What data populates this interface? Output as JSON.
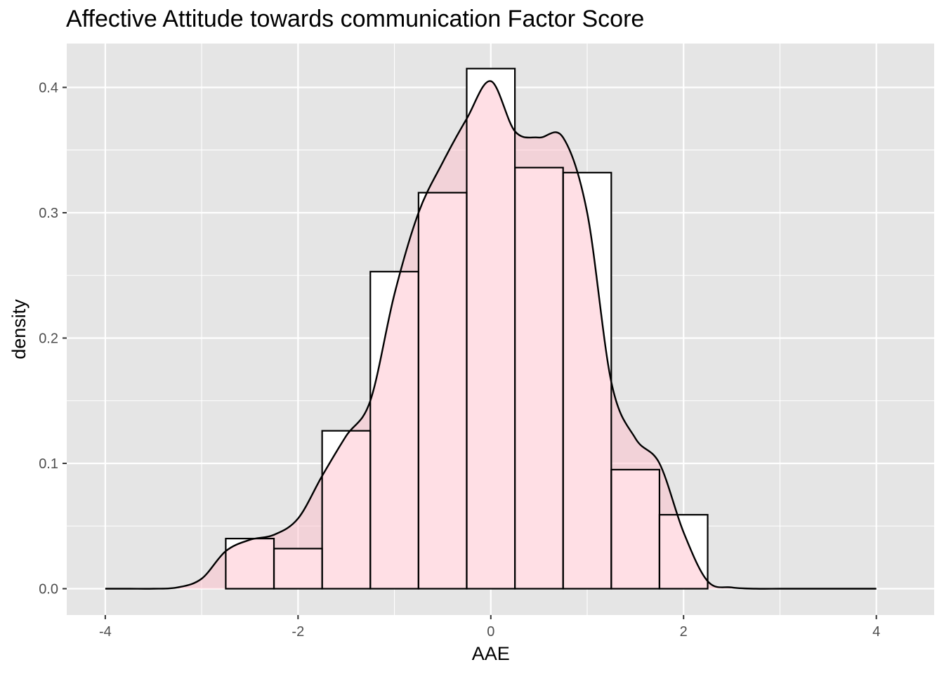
{
  "chart_data": {
    "type": "histogram",
    "title": "Affective Attitude towards communication Factor Score",
    "xlabel": "AAE",
    "ylabel": "density",
    "xlim": [
      -4.4,
      4.6
    ],
    "ylim": [
      -0.021,
      0.435
    ],
    "x_ticks": [
      -4,
      -2,
      0,
      2,
      4
    ],
    "x_tick_labels": [
      "-4",
      "-2",
      "0",
      "2",
      "4"
    ],
    "y_ticks": [
      0.0,
      0.1,
      0.2,
      0.3,
      0.4
    ],
    "y_tick_labels": [
      "0.0",
      "0.1",
      "0.2",
      "0.3",
      "0.4"
    ],
    "grid": true,
    "histogram": {
      "bin_width": 0.5,
      "bins": [
        {
          "x0": -2.75,
          "x1": -2.25,
          "density": 0.04
        },
        {
          "x0": -2.25,
          "x1": -1.75,
          "density": 0.032
        },
        {
          "x0": -1.75,
          "x1": -1.25,
          "density": 0.126
        },
        {
          "x0": -1.25,
          "x1": -0.75,
          "density": 0.253
        },
        {
          "x0": -0.75,
          "x1": -0.25,
          "density": 0.316
        },
        {
          "x0": -0.25,
          "x1": 0.25,
          "density": 0.415
        },
        {
          "x0": 0.25,
          "x1": 0.75,
          "density": 0.336
        },
        {
          "x0": 0.75,
          "x1": 1.25,
          "density": 0.332
        },
        {
          "x0": 1.25,
          "x1": 1.75,
          "density": 0.095
        },
        {
          "x0": 1.75,
          "x1": 2.25,
          "density": 0.059
        }
      ]
    },
    "density_curve": {
      "x": [
        -4.0,
        -3.75,
        -3.5,
        -3.25,
        -3.0,
        -2.75,
        -2.5,
        -2.25,
        -2.0,
        -1.75,
        -1.5,
        -1.25,
        -1.0,
        -0.75,
        -0.5,
        -0.25,
        0.0,
        0.25,
        0.5,
        0.75,
        1.0,
        1.25,
        1.5,
        1.75,
        2.0,
        2.25,
        2.5,
        2.75,
        3.0,
        3.25,
        3.5,
        3.75,
        4.0
      ],
      "y": [
        0.0,
        0.0,
        0.0,
        0.001,
        0.008,
        0.03,
        0.039,
        0.043,
        0.056,
        0.09,
        0.122,
        0.15,
        0.235,
        0.3,
        0.34,
        0.375,
        0.405,
        0.365,
        0.36,
        0.36,
        0.3,
        0.165,
        0.12,
        0.1,
        0.045,
        0.006,
        0.001,
        0.0,
        0.0,
        0.0,
        0.0,
        0.0,
        0.0
      ]
    },
    "colors": {
      "panel_background": "#e5e5e5",
      "grid_line": "#ffffff",
      "bar_fill": "#ffffff",
      "bar_outline": "#000000",
      "density_fill": "#ffc0cb",
      "density_fill_opacity": 0.5,
      "density_line": "#000000",
      "axis_text": "#4d4d4d",
      "title_text": "#000000"
    }
  }
}
